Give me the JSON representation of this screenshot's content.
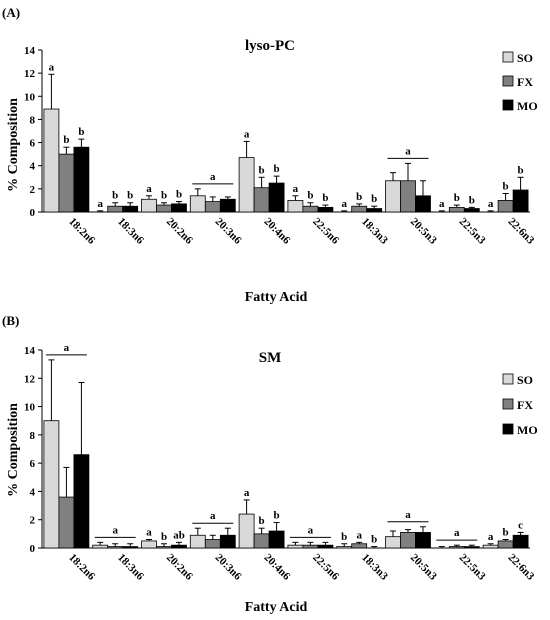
{
  "chart_data": [
    {
      "type": "bar",
      "panel_label": "(A)",
      "title": "lyso-PC",
      "xlabel": "Fatty Acid",
      "ylabel": "% Composition",
      "ylim": [
        0,
        14
      ],
      "yticks": [
        0,
        2,
        4,
        6,
        8,
        10,
        12,
        14
      ],
      "legend_position": "top-right",
      "error_bars": true,
      "categories": [
        "18:2n6",
        "18:3n6",
        "20:2n6",
        "20:3n6",
        "20:4n6",
        "22:5n6",
        "18:3n3",
        "20:5n3",
        "22:5n3",
        "22:6n3"
      ],
      "series": [
        {
          "name": "SO",
          "color": "#d9d9d9",
          "values": [
            8.9,
            0.0,
            1.1,
            1.4,
            4.7,
            1.0,
            0.0,
            2.7,
            0.0,
            0.0
          ],
          "errors": [
            3.0,
            0.1,
            0.3,
            0.6,
            1.4,
            0.4,
            0.1,
            0.7,
            0.1,
            0.1
          ]
        },
        {
          "name": "FX",
          "color": "#808080",
          "values": [
            5.0,
            0.5,
            0.6,
            0.9,
            2.1,
            0.5,
            0.5,
            2.7,
            0.4,
            1.0
          ],
          "errors": [
            0.6,
            0.3,
            0.2,
            0.4,
            0.9,
            0.3,
            0.2,
            1.5,
            0.2,
            0.6
          ]
        },
        {
          "name": "MO",
          "color": "#000000",
          "values": [
            5.6,
            0.5,
            0.7,
            1.1,
            2.5,
            0.4,
            0.3,
            1.4,
            0.3,
            1.9
          ],
          "errors": [
            0.7,
            0.3,
            0.2,
            0.2,
            0.6,
            0.2,
            0.2,
            1.3,
            0.1,
            1.1
          ]
        }
      ],
      "significance": [
        {
          "category": "18:2n6",
          "type": "individual",
          "labels": [
            "a",
            "b",
            "b"
          ]
        },
        {
          "category": "18:3n6",
          "type": "individual",
          "labels": [
            "a",
            "b",
            "b"
          ]
        },
        {
          "category": "20:2n6",
          "type": "individual",
          "labels": [
            "a",
            "b",
            "b"
          ]
        },
        {
          "category": "20:3n6",
          "type": "group",
          "labels": [
            "a"
          ]
        },
        {
          "category": "20:4n6",
          "type": "individual",
          "labels": [
            "a",
            "b",
            "b"
          ]
        },
        {
          "category": "22:5n6",
          "type": "individual",
          "labels": [
            "a",
            "b",
            "b"
          ]
        },
        {
          "category": "18:3n3",
          "type": "individual",
          "labels": [
            "a",
            "b",
            "b"
          ]
        },
        {
          "category": "20:5n3",
          "type": "group",
          "labels": [
            "a"
          ]
        },
        {
          "category": "22:5n3",
          "type": "individual",
          "labels": [
            "a",
            "b",
            "b"
          ]
        },
        {
          "category": "22:6n3",
          "type": "individual",
          "labels": [
            "a",
            "b",
            "b"
          ]
        }
      ]
    },
    {
      "type": "bar",
      "panel_label": "(B)",
      "title": "SM",
      "xlabel": "Fatty Acid",
      "ylabel": "% Composition",
      "ylim": [
        0,
        14
      ],
      "yticks": [
        0,
        2,
        4,
        6,
        8,
        10,
        12,
        14
      ],
      "legend_position": "right",
      "error_bars": true,
      "categories": [
        "18:2n6",
        "18:3n6",
        "20:2n6",
        "20:3n6",
        "20:4n6",
        "22:5n6",
        "18:3n3",
        "20:5n3",
        "22:5n3",
        "22:6n3"
      ],
      "series": [
        {
          "name": "SO",
          "color": "#d9d9d9",
          "values": [
            9.0,
            0.2,
            0.5,
            0.9,
            2.4,
            0.2,
            0.1,
            0.8,
            0.0,
            0.2
          ],
          "errors": [
            4.3,
            0.2,
            0.1,
            0.5,
            1.0,
            0.2,
            0.2,
            0.4,
            0.1,
            0.1
          ]
        },
        {
          "name": "FX",
          "color": "#808080",
          "values": [
            3.6,
            0.1,
            0.1,
            0.6,
            1.0,
            0.2,
            0.3,
            1.1,
            0.1,
            0.5
          ],
          "errors": [
            2.1,
            0.2,
            0.2,
            0.3,
            0.4,
            0.2,
            0.1,
            0.2,
            0.1,
            0.1
          ]
        },
        {
          "name": "MO",
          "color": "#000000",
          "values": [
            6.6,
            0.1,
            0.2,
            0.9,
            1.2,
            0.2,
            0.0,
            1.1,
            0.1,
            0.9
          ],
          "errors": [
            5.1,
            0.2,
            0.2,
            0.5,
            0.6,
            0.2,
            0.1,
            0.4,
            0.1,
            0.2
          ]
        }
      ],
      "significance": [
        {
          "category": "18:2n6",
          "type": "group",
          "labels": [
            "a"
          ]
        },
        {
          "category": "18:3n6",
          "type": "group",
          "labels": [
            "a"
          ]
        },
        {
          "category": "20:2n6",
          "type": "individual",
          "labels": [
            "a",
            "b",
            "ab"
          ]
        },
        {
          "category": "20:3n6",
          "type": "group",
          "labels": [
            "a"
          ]
        },
        {
          "category": "20:4n6",
          "type": "individual",
          "labels": [
            "a",
            "b",
            "b"
          ]
        },
        {
          "category": "22:5n6",
          "type": "group",
          "labels": [
            "a"
          ]
        },
        {
          "category": "18:3n3",
          "type": "individual",
          "labels": [
            "b",
            "a",
            "b"
          ]
        },
        {
          "category": "20:5n3",
          "type": "group",
          "labels": [
            "a"
          ]
        },
        {
          "category": "22:5n3",
          "type": "group",
          "labels": [
            "a"
          ]
        },
        {
          "category": "22:6n3",
          "type": "individual",
          "labels": [
            "a",
            "b",
            "c"
          ]
        }
      ]
    }
  ]
}
